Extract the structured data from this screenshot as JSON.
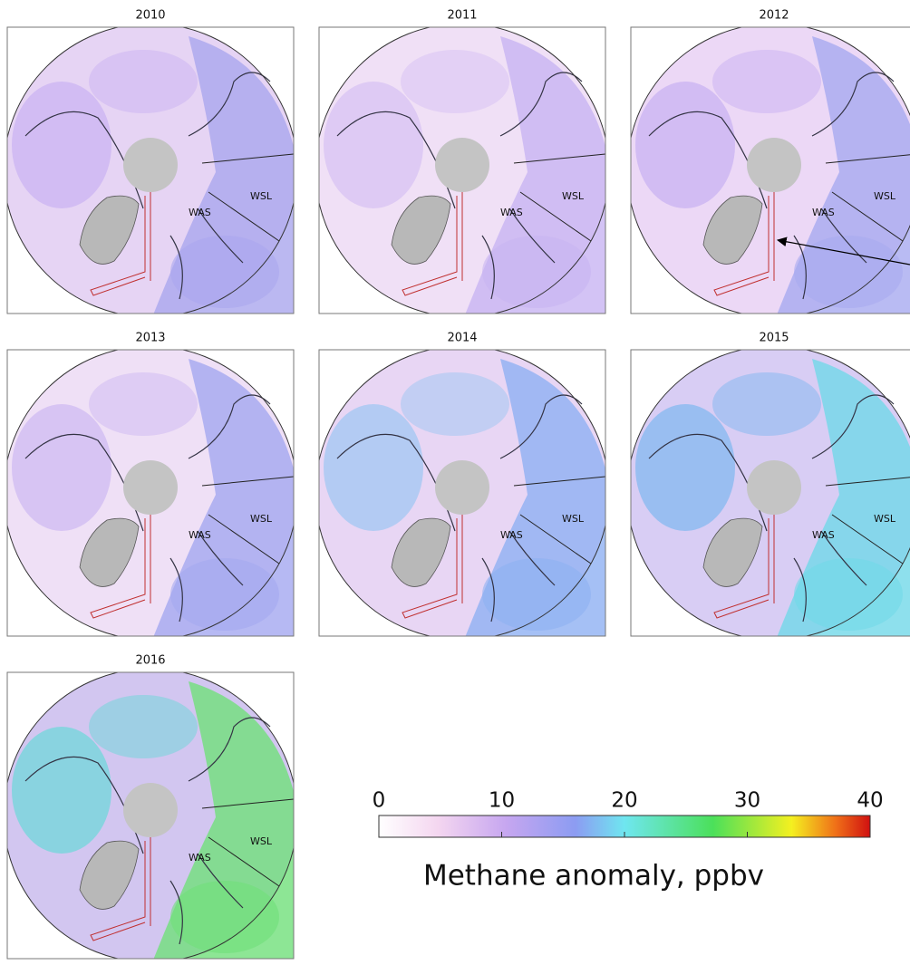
{
  "panels": [
    {
      "title": "2010",
      "labels": [
        "WAS",
        "WSL"
      ]
    },
    {
      "title": "2011",
      "labels": [
        "WAS",
        "WSL"
      ]
    },
    {
      "title": "2012",
      "labels": [
        "WAS",
        "WSL"
      ]
    },
    {
      "title": "2013",
      "labels": [
        "WAS",
        "WSL"
      ]
    },
    {
      "title": "2014",
      "labels": [
        "WAS",
        "WSL"
      ]
    },
    {
      "title": "2015",
      "labels": [
        "WAS",
        "WSL"
      ]
    },
    {
      "title": "2016",
      "labels": [
        "WAS",
        "WSL"
      ]
    }
  ],
  "colorbar": {
    "range": [
      0,
      40
    ],
    "ticks": [
      0,
      10,
      20,
      30,
      40
    ],
    "label": "Methane anomaly, ppbv"
  }
}
